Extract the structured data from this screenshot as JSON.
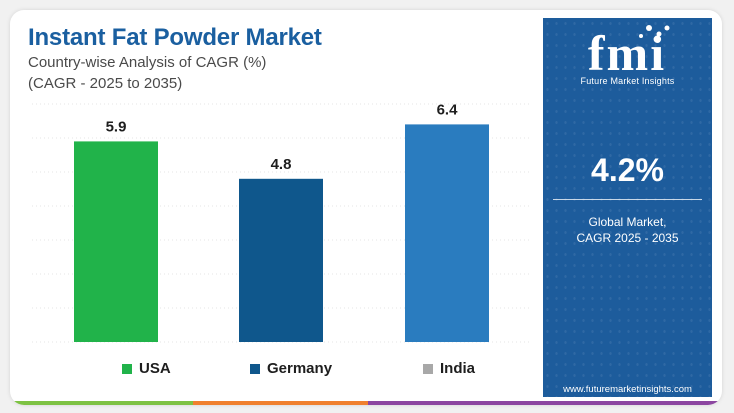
{
  "title": "Instant Fat Powder Market",
  "subtitle": "Country-wise Analysis of CAGR (%)",
  "subtitle2": "(CAGR - 2025 to 2035)",
  "chart_data": {
    "type": "bar",
    "categories": [
      "USA",
      "Germany",
      "India"
    ],
    "values": [
      5.9,
      4.8,
      6.4
    ],
    "data_labels": [
      "5.9",
      "4.8",
      "6.4"
    ],
    "colors": [
      "#21b34a",
      "#0f578c",
      "#2a7cbf"
    ],
    "legend": [
      {
        "label": "USA",
        "color": "#21b34a"
      },
      {
        "label": "Germany",
        "color": "#0f578c"
      },
      {
        "label": "India",
        "color": "#a8a8a8"
      }
    ],
    "ylim": [
      0,
      7
    ],
    "grid": true,
    "legend_position": "bottom"
  },
  "panel": {
    "logo_text": "Future Market Insights",
    "metric_value": "4.2%",
    "metric_label_line1": "Global Market,",
    "metric_label_line2": "CAGR 2025 - 2035",
    "url": "www.futuremarketinsights.com",
    "background_color": "#1d5c9c"
  },
  "bottom_strip_colors": [
    "#7dc243",
    "#f0802e",
    "#8c46a0"
  ]
}
